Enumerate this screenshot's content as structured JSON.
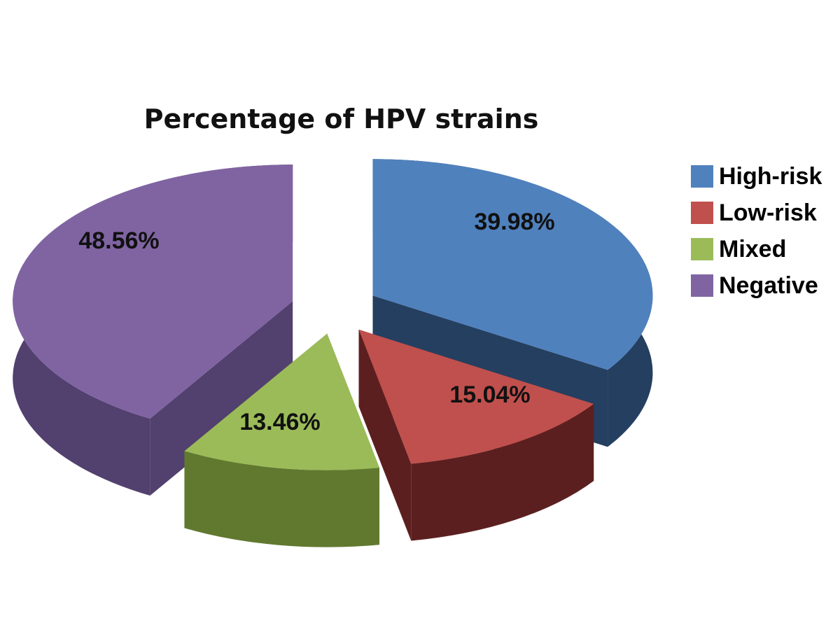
{
  "chart_data": {
    "type": "pie",
    "style": "3d-exploded",
    "title": "Percentage of HPV strains",
    "categories": [
      "High-risk",
      "Low-risk",
      "Mixed",
      "Negative"
    ],
    "values": [
      39.98,
      15.04,
      13.46,
      48.56
    ],
    "data_labels": [
      "39.98%",
      "15.04%",
      "13.46%",
      "48.56%"
    ],
    "colors": [
      "#4f81bd",
      "#c0504d",
      "#9bbb59",
      "#8064a2"
    ],
    "side_colors": [
      "#253f60",
      "#5c1f1f",
      "#60792f",
      "#52406e"
    ],
    "legend_placement": "right"
  }
}
